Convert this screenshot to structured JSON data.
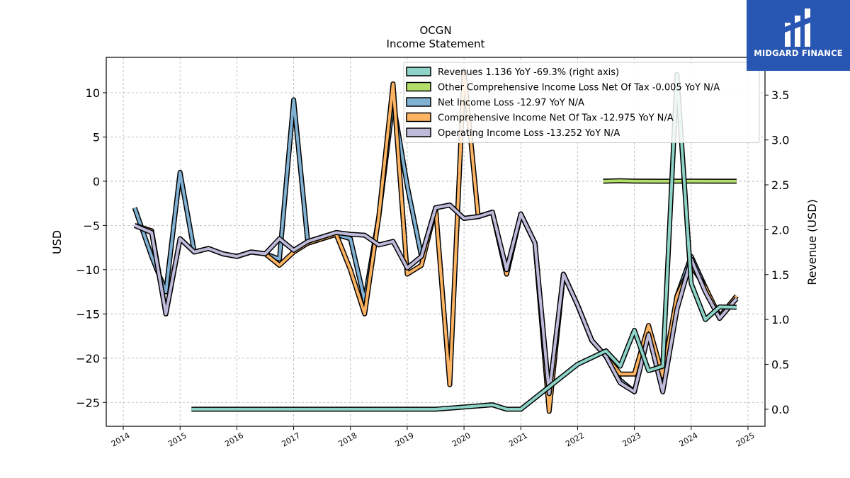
{
  "brand": {
    "name": "MIDGARD FINANCE",
    "colors": {
      "bg": "#2856b3",
      "fg": "#ffffff"
    }
  },
  "chart_data": {
    "type": "line",
    "title": "OCGN",
    "subtitle": "Income Statement",
    "ylabel": "USD",
    "y2label": "Revenue (USD)",
    "xlim": [
      2013.7,
      2025.3
    ],
    "ylim": [
      -27.7,
      14.0
    ],
    "y2lim": [
      -0.19,
      3.92
    ],
    "x_ticks": [
      "2014",
      "2015",
      "2016",
      "2017",
      "2018",
      "2019",
      "2020",
      "2021",
      "2022",
      "2023",
      "2024",
      "2025"
    ],
    "y_ticks": [
      -25,
      -20,
      -15,
      -10,
      -5,
      0,
      5,
      10
    ],
    "y2_ticks": [
      "0.0",
      "0.5",
      "1.0",
      "1.5",
      "2.0",
      "2.5",
      "3.0",
      "3.5"
    ],
    "grid": true,
    "legend_position": "top-right",
    "series": [
      {
        "name": "Revenues  1.136 YoY -69.3% (right axis)",
        "axis": "right",
        "color": "#8dd3c7",
        "points": [
          [
            2015.2,
            0.0
          ],
          [
            2019.5,
            0.0
          ],
          [
            2020.5,
            0.05
          ],
          [
            2020.75,
            0.0
          ],
          [
            2021.0,
            0.0
          ],
          [
            2022.0,
            0.5
          ],
          [
            2022.5,
            0.65
          ],
          [
            2022.75,
            0.48
          ],
          [
            2023.0,
            0.88
          ],
          [
            2023.25,
            0.43
          ],
          [
            2023.5,
            0.48
          ],
          [
            2023.75,
            3.73
          ],
          [
            2024.0,
            1.4
          ],
          [
            2024.25,
            1.0
          ],
          [
            2024.5,
            1.14
          ],
          [
            2024.8,
            1.136
          ]
        ]
      },
      {
        "name": "Other Comprehensive Income Loss Net Of Tax -0.005 YoY N/A",
        "axis": "left",
        "color": "#b3de69",
        "points": [
          [
            2022.45,
            0.0
          ],
          [
            2022.75,
            0.05
          ],
          [
            2023.0,
            0.02
          ],
          [
            2023.5,
            0.0
          ],
          [
            2024.0,
            0.01
          ],
          [
            2024.8,
            0.0
          ]
        ]
      },
      {
        "name": "Net Income Loss  -12.97 YoY N/A",
        "axis": "left",
        "color": "#80b1d3",
        "points": [
          [
            2014.2,
            -3.0
          ],
          [
            2014.5,
            -8.5
          ],
          [
            2014.75,
            -12.5
          ],
          [
            2015.0,
            1.0
          ],
          [
            2015.25,
            -8.0
          ],
          [
            2015.5,
            -7.6
          ],
          [
            2015.75,
            -8.2
          ],
          [
            2016.0,
            -8.5
          ],
          [
            2016.25,
            -8.0
          ],
          [
            2016.5,
            -8.2
          ],
          [
            2016.75,
            -8.8
          ],
          [
            2017.0,
            9.2
          ],
          [
            2017.25,
            -7.0
          ],
          [
            2017.5,
            -6.5
          ],
          [
            2017.75,
            -6.0
          ],
          [
            2018.0,
            -6.5
          ],
          [
            2018.25,
            -13.5
          ],
          [
            2018.5,
            -4.0
          ],
          [
            2018.75,
            9.0
          ],
          [
            2019.0,
            -0.5
          ],
          [
            2019.25,
            -8.5
          ],
          [
            2019.5,
            -3.0
          ],
          [
            2019.75,
            -2.7
          ],
          [
            2020.0,
            -4.2
          ],
          [
            2020.25,
            -4.0
          ],
          [
            2020.5,
            -3.5
          ],
          [
            2020.75,
            -10.5
          ],
          [
            2021.0,
            -3.7
          ],
          [
            2021.25,
            -7.0
          ],
          [
            2021.5,
            -25.5
          ],
          [
            2021.75,
            -10.5
          ],
          [
            2022.0,
            -14.0
          ],
          [
            2022.25,
            -18.0
          ],
          [
            2022.5,
            -19.8
          ],
          [
            2022.75,
            -22.5
          ],
          [
            2023.0,
            -23.8
          ],
          [
            2023.25,
            -17.0
          ],
          [
            2023.5,
            -23.5
          ],
          [
            2023.75,
            -13.0
          ],
          [
            2024.0,
            -8.5
          ],
          [
            2024.25,
            -12.0
          ],
          [
            2024.5,
            -15.5
          ],
          [
            2024.8,
            -12.97
          ]
        ]
      },
      {
        "name": "Comprehensive Income Net Of Tax  -12.975 YoY N/A",
        "axis": "left",
        "color": "#fdb462",
        "points": [
          [
            2014.2,
            -5.0
          ],
          [
            2014.5,
            -5.6
          ],
          [
            2014.75,
            -15.0
          ],
          [
            2015.0,
            -6.5
          ],
          [
            2015.25,
            -8.0
          ],
          [
            2015.5,
            -7.6
          ],
          [
            2015.75,
            -8.2
          ],
          [
            2016.0,
            -8.5
          ],
          [
            2016.25,
            -8.0
          ],
          [
            2016.5,
            -8.2
          ],
          [
            2016.75,
            -9.5
          ],
          [
            2017.0,
            -8.0
          ],
          [
            2017.25,
            -7.0
          ],
          [
            2017.5,
            -6.5
          ],
          [
            2017.75,
            -6.0
          ],
          [
            2018.0,
            -10.0
          ],
          [
            2018.25,
            -15.0
          ],
          [
            2018.5,
            -4.0
          ],
          [
            2018.75,
            11.0
          ],
          [
            2019.0,
            -10.5
          ],
          [
            2019.25,
            -9.5
          ],
          [
            2019.5,
            -3.0
          ],
          [
            2019.75,
            -23.0
          ],
          [
            2020.0,
            12.5
          ],
          [
            2020.25,
            -4.0
          ],
          [
            2020.5,
            -3.5
          ],
          [
            2020.75,
            -10.5
          ],
          [
            2021.0,
            -3.7
          ],
          [
            2021.25,
            -7.0
          ],
          [
            2021.5,
            -26.0
          ],
          [
            2021.75,
            -10.5
          ],
          [
            2022.0,
            -14.0
          ],
          [
            2022.25,
            -18.0
          ],
          [
            2022.5,
            -19.8
          ],
          [
            2022.75,
            -21.8
          ],
          [
            2023.0,
            -21.8
          ],
          [
            2023.25,
            -16.3
          ],
          [
            2023.5,
            -22.0
          ],
          [
            2023.75,
            -13.0
          ],
          [
            2024.0,
            -9.5
          ],
          [
            2024.25,
            -12.0
          ],
          [
            2024.5,
            -15.3
          ],
          [
            2024.8,
            -12.975
          ]
        ]
      },
      {
        "name": "Operating Income Loss  -13.252 YoY N/A",
        "axis": "left",
        "color": "#bebada",
        "points": [
          [
            2014.2,
            -5.0
          ],
          [
            2014.5,
            -5.8
          ],
          [
            2014.75,
            -15.0
          ],
          [
            2015.0,
            -6.5
          ],
          [
            2015.25,
            -8.0
          ],
          [
            2015.5,
            -7.6
          ],
          [
            2015.75,
            -8.2
          ],
          [
            2016.0,
            -8.5
          ],
          [
            2016.25,
            -8.0
          ],
          [
            2016.5,
            -8.2
          ],
          [
            2016.75,
            -6.5
          ],
          [
            2017.0,
            -7.8
          ],
          [
            2017.25,
            -6.8
          ],
          [
            2017.5,
            -6.3
          ],
          [
            2017.75,
            -5.8
          ],
          [
            2018.0,
            -6.0
          ],
          [
            2018.25,
            -6.1
          ],
          [
            2018.5,
            -7.2
          ],
          [
            2018.75,
            -6.8
          ],
          [
            2019.0,
            -9.8
          ],
          [
            2019.25,
            -8.5
          ],
          [
            2019.5,
            -3.0
          ],
          [
            2019.75,
            -2.7
          ],
          [
            2020.0,
            -4.2
          ],
          [
            2020.25,
            -4.0
          ],
          [
            2020.5,
            -3.5
          ],
          [
            2020.75,
            -10.0
          ],
          [
            2021.0,
            -3.7
          ],
          [
            2021.25,
            -7.0
          ],
          [
            2021.5,
            -24.0
          ],
          [
            2021.75,
            -10.5
          ],
          [
            2022.0,
            -14.0
          ],
          [
            2022.25,
            -18.0
          ],
          [
            2022.5,
            -19.8
          ],
          [
            2022.75,
            -22.8
          ],
          [
            2023.0,
            -23.8
          ],
          [
            2023.25,
            -17.3
          ],
          [
            2023.5,
            -23.8
          ],
          [
            2023.75,
            -14.5
          ],
          [
            2024.0,
            -8.8
          ],
          [
            2024.25,
            -12.5
          ],
          [
            2024.5,
            -15.5
          ],
          [
            2024.8,
            -13.252
          ]
        ]
      }
    ]
  }
}
